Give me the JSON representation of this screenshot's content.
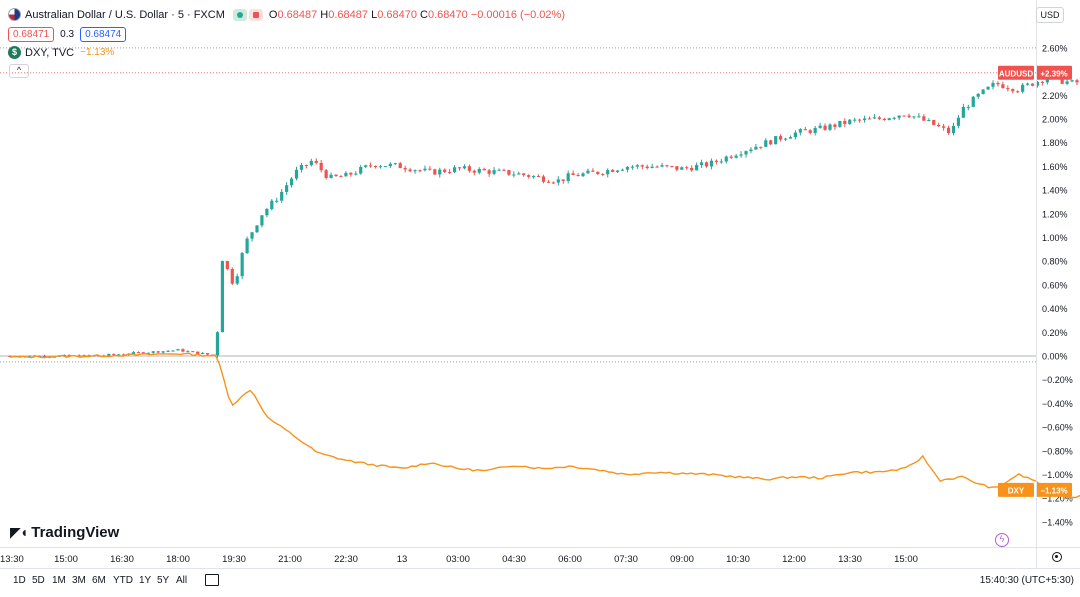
{
  "legend": {
    "title": "Australian Dollar / U.S. Dollar · 5 · FXCM",
    "ohlc": [
      {
        "k": "O",
        "v": "0.68487"
      },
      {
        "k": "H",
        "v": "0.68487"
      },
      {
        "k": "L",
        "v": "0.68470"
      },
      {
        "k": "C",
        "v": "0.68470"
      }
    ],
    "change": "−0.00016 (−0.02%)",
    "bid": "0.68471",
    "spread": "0.3",
    "ask": "0.68474",
    "compare_title": "DXY, TVC",
    "compare_change": "−1.13%",
    "collapse_glyph": "^"
  },
  "currency": "USD",
  "icons": {
    "symbol": "flag-icon",
    "compare": "dollar-icon",
    "visibility": "eye-icon",
    "remove": "trash-icon",
    "logo": "tradingview-logo",
    "lightning": "lightning-icon",
    "settings": "gear-icon",
    "compare_symbols": "compare-icon"
  },
  "logo_text": "TradingView",
  "timeframes": [
    "1D",
    "5D",
    "1M",
    "3M",
    "6M",
    "YTD",
    "1Y",
    "5Y",
    "All"
  ],
  "clock": "15:40:30 (UTC+5:30)",
  "colors": {
    "up": "#26a69a",
    "down": "#ef5350",
    "dxy": "#f7931a"
  },
  "chart_data": {
    "type": "line",
    "title": "Australian Dollar / U.S. Dollar · 5 · FXCM",
    "y_axis": {
      "unit": "%",
      "scale": "percentage",
      "ylim": [
        -1.45,
        2.65
      ],
      "tick_step": 0.2,
      "position": "right"
    },
    "x_ticks": [
      "13:30",
      "15:00",
      "16:30",
      "18:00",
      "19:30",
      "21:00",
      "22:30",
      "13",
      "03:00",
      "04:30",
      "06:00",
      "07:30",
      "09:00",
      "10:30",
      "12:00",
      "13:30",
      "15:00"
    ],
    "grid": false,
    "series": [
      {
        "name": "AUDUSD",
        "style": "candles",
        "last_label": "+2.39%",
        "baseline_label": "0.00%",
        "path": [
          [
            0,
            0
          ],
          [
            1.5,
            0
          ],
          [
            3,
            0.05
          ],
          [
            3.7,
            0
          ],
          [
            3.72,
            0.9
          ],
          [
            4,
            0.6
          ],
          [
            4.2,
            0.95
          ],
          [
            4.5,
            1.2
          ],
          [
            4.8,
            1.35
          ],
          [
            5.1,
            1.55
          ],
          [
            5.4,
            1.65
          ],
          [
            5.7,
            1.5
          ],
          [
            6,
            1.52
          ],
          [
            6.5,
            1.62
          ],
          [
            7,
            1.6
          ],
          [
            7.5,
            1.55
          ],
          [
            8,
            1.58
          ],
          [
            8.5,
            1.56
          ],
          [
            9,
            1.54
          ],
          [
            9.3,
            1.52
          ],
          [
            9.5,
            1.5
          ],
          [
            9.8,
            1.48
          ],
          [
            10,
            1.52
          ],
          [
            10.5,
            1.55
          ],
          [
            11,
            1.6
          ],
          [
            11.5,
            1.6
          ],
          [
            12,
            1.58
          ],
          [
            12.5,
            1.62
          ],
          [
            12.8,
            1.68
          ],
          [
            13,
            1.72
          ],
          [
            13.5,
            1.8
          ],
          [
            14,
            1.88
          ],
          [
            14.5,
            1.92
          ],
          [
            15,
            1.98
          ],
          [
            15.5,
            2.0
          ],
          [
            16,
            2.05
          ],
          [
            16.5,
            1.95
          ],
          [
            16.8,
            1.88
          ],
          [
            17,
            2.08
          ],
          [
            17.3,
            2.2
          ],
          [
            17.6,
            2.3
          ],
          [
            18,
            2.25
          ],
          [
            18.5,
            2.35
          ],
          [
            19,
            2.3
          ],
          [
            19.5,
            2.38
          ],
          [
            20,
            2.42
          ],
          [
            20.2,
            2.39
          ]
        ]
      },
      {
        "name": "DXY",
        "style": "line",
        "last_label": "−1.13%",
        "path": [
          [
            0,
            -0.01
          ],
          [
            1.5,
            0
          ],
          [
            3,
            0.02
          ],
          [
            3.7,
            0
          ],
          [
            3.95,
            -0.42
          ],
          [
            4.3,
            -0.28
          ],
          [
            4.6,
            -0.52
          ],
          [
            5,
            -0.65
          ],
          [
            5.5,
            -0.82
          ],
          [
            6,
            -0.88
          ],
          [
            6.5,
            -0.92
          ],
          [
            7,
            -0.95
          ],
          [
            7.5,
            -0.9
          ],
          [
            8,
            -0.95
          ],
          [
            8.5,
            -0.97
          ],
          [
            9,
            -0.92
          ],
          [
            9.5,
            -0.95
          ],
          [
            10,
            -0.93
          ],
          [
            10.5,
            -0.96
          ],
          [
            11,
            -1.0
          ],
          [
            11.5,
            -0.98
          ],
          [
            12,
            -0.99
          ],
          [
            12.5,
            -1.0
          ],
          [
            13,
            -1.02
          ],
          [
            13.5,
            -1.04
          ],
          [
            14,
            -1.02
          ],
          [
            14.5,
            -1.03
          ],
          [
            15,
            -0.98
          ],
          [
            15.5,
            -0.98
          ],
          [
            16,
            -0.95
          ],
          [
            16.3,
            -0.85
          ],
          [
            16.6,
            -1.05
          ],
          [
            17,
            -1.02
          ],
          [
            17.3,
            -1.08
          ],
          [
            17.6,
            -1.12
          ],
          [
            18,
            -1.0
          ],
          [
            18.3,
            -1.05
          ],
          [
            18.6,
            -1.15
          ],
          [
            19,
            -1.2
          ],
          [
            19.3,
            -1.12
          ],
          [
            19.6,
            -1.15
          ],
          [
            19.9,
            -1.18
          ],
          [
            20.2,
            -1.13
          ]
        ]
      }
    ]
  }
}
